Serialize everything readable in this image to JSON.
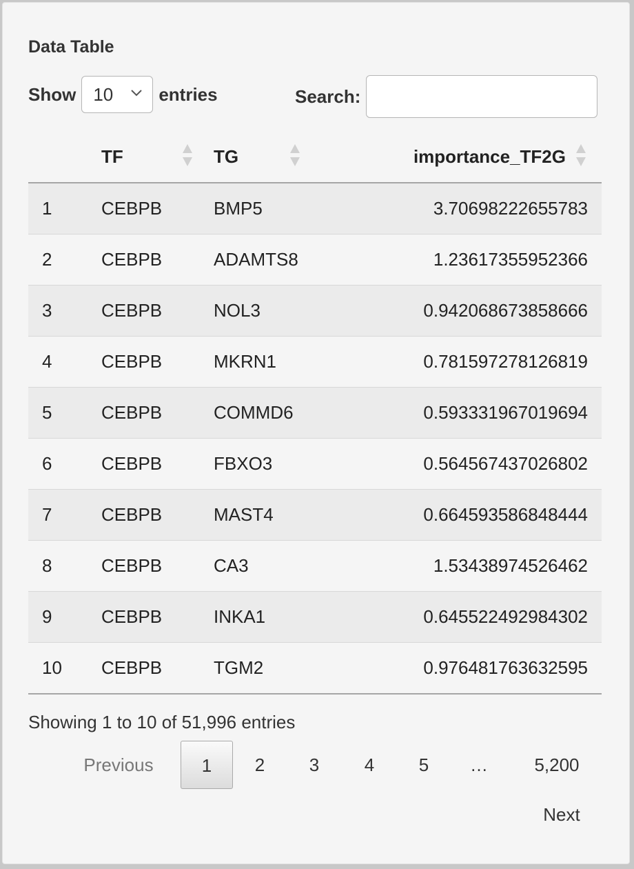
{
  "panel": {
    "title": "Data Table"
  },
  "length": {
    "show": "Show",
    "value": "10",
    "entries": "entries"
  },
  "search": {
    "label": "Search:",
    "value": "",
    "placeholder": ""
  },
  "table": {
    "columns": [
      "",
      "TF",
      "TG",
      "importance_TF2G"
    ],
    "rows": [
      [
        "1",
        "CEBPB",
        "BMP5",
        "3.70698222655783"
      ],
      [
        "2",
        "CEBPB",
        "ADAMTS8",
        "1.23617355952366"
      ],
      [
        "3",
        "CEBPB",
        "NOL3",
        "0.942068673858666"
      ],
      [
        "4",
        "CEBPB",
        "MKRN1",
        "0.781597278126819"
      ],
      [
        "5",
        "CEBPB",
        "COMMD6",
        "0.593331967019694"
      ],
      [
        "6",
        "CEBPB",
        "FBXO3",
        "0.564567437026802"
      ],
      [
        "7",
        "CEBPB",
        "MAST4",
        "0.664593586848444"
      ],
      [
        "8",
        "CEBPB",
        "CA3",
        "1.53438974526462"
      ],
      [
        "9",
        "CEBPB",
        "INKA1",
        "0.645522492984302"
      ],
      [
        "10",
        "CEBPB",
        "TGM2",
        "0.976481763632595"
      ]
    ]
  },
  "info": "Showing 1 to 10 of 51,996 entries",
  "pagination": {
    "previous": "Previous",
    "pages": [
      "1",
      "2",
      "3",
      "4",
      "5"
    ],
    "ellipsis": "…",
    "last": "5,200",
    "next": "Next",
    "current": "1"
  },
  "colors": {
    "panel_bg": "#f5f5f5",
    "stripe": "#ebebeb",
    "text": "#333333"
  },
  "icons": {
    "sort": "sort-both-icon",
    "dropdown": "chevron-down-icon"
  }
}
